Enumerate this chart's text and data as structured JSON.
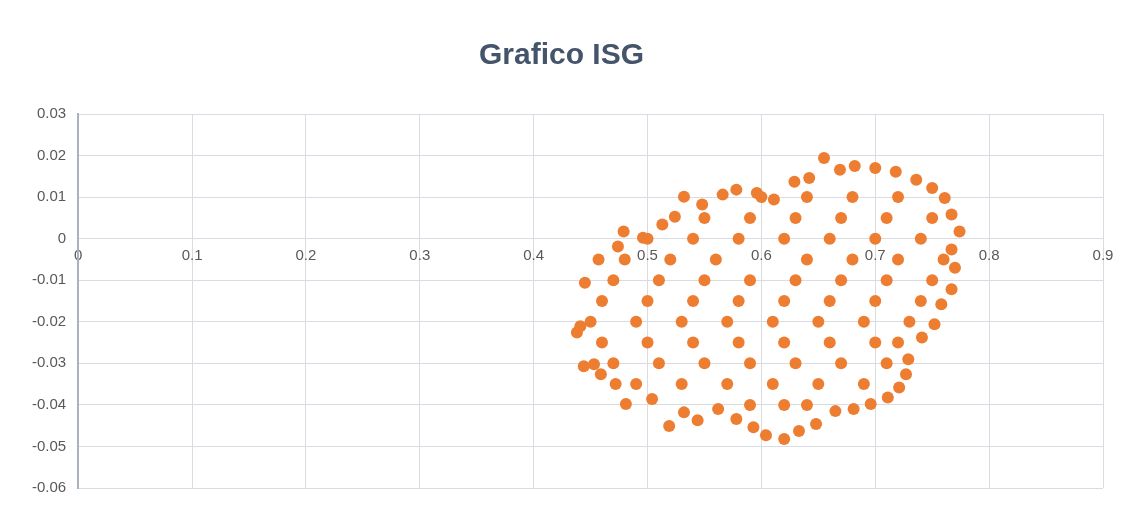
{
  "chart_data": {
    "type": "scatter",
    "title": "Grafico ISG",
    "xlim": [
      0,
      0.9
    ],
    "xticks": [
      0,
      0.1,
      0.2,
      0.3,
      0.4,
      0.5,
      0.6,
      0.7,
      0.8,
      0.9
    ],
    "ylim": [
      -0.06,
      0.03
    ],
    "yticks": [
      -0.06,
      -0.05,
      -0.04,
      -0.03,
      -0.02,
      -0.01,
      0,
      0.01,
      0.02,
      0.03
    ],
    "grid": true,
    "marker": "circle",
    "series": [
      {
        "color": "#ed7d31",
        "x": [
          0.438,
          0.441,
          0.444,
          0.453,
          0.445,
          0.457,
          0.474,
          0.479,
          0.496,
          0.513,
          0.524,
          0.532,
          0.548,
          0.566,
          0.578,
          0.596,
          0.611,
          0.629,
          0.642,
          0.655,
          0.669,
          0.682,
          0.7,
          0.718,
          0.736,
          0.75,
          0.761,
          0.767,
          0.774,
          0.767,
          0.77,
          0.767,
          0.758,
          0.752,
          0.741,
          0.729,
          0.727,
          0.721,
          0.711,
          0.696,
          0.681,
          0.665,
          0.648,
          0.633,
          0.62,
          0.604,
          0.593,
          0.578,
          0.562,
          0.544,
          0.532,
          0.519,
          0.504,
          0.481,
          0.472,
          0.459,
          0.6,
          0.64,
          0.68,
          0.72,
          0.55,
          0.59,
          0.63,
          0.67,
          0.71,
          0.75,
          0.5,
          0.54,
          0.58,
          0.62,
          0.66,
          0.7,
          0.74,
          0.48,
          0.52,
          0.56,
          0.64,
          0.68,
          0.72,
          0.76,
          0.47,
          0.51,
          0.55,
          0.59,
          0.63,
          0.67,
          0.71,
          0.75,
          0.46,
          0.5,
          0.54,
          0.58,
          0.62,
          0.66,
          0.7,
          0.74,
          0.45,
          0.49,
          0.53,
          0.57,
          0.61,
          0.65,
          0.69,
          0.73,
          0.46,
          0.5,
          0.54,
          0.58,
          0.62,
          0.66,
          0.7,
          0.72,
          0.47,
          0.51,
          0.55,
          0.59,
          0.63,
          0.67,
          0.71,
          0.49,
          0.53,
          0.57,
          0.61,
          0.65,
          0.69,
          0.59,
          0.62,
          0.64
        ],
        "values": [
          -0.0226,
          -0.0211,
          -0.0307,
          -0.0302,
          -0.0106,
          -0.005,
          -0.0019,
          0.0017,
          0.0002,
          0.0034,
          0.0053,
          0.0101,
          0.0082,
          0.0106,
          0.0118,
          0.011,
          0.0094,
          0.0137,
          0.0146,
          0.0194,
          0.0166,
          0.0175,
          0.017,
          0.0161,
          0.0142,
          0.0122,
          0.0098,
          0.0058,
          0.0017,
          -0.0026,
          -0.007,
          -0.0122,
          -0.0158,
          -0.0206,
          -0.0238,
          -0.029,
          -0.0326,
          -0.0358,
          -0.0382,
          -0.0398,
          -0.041,
          -0.0415,
          -0.0446,
          -0.0463,
          -0.0482,
          -0.0473,
          -0.0454,
          -0.0434,
          -0.041,
          -0.0437,
          -0.0418,
          -0.0451,
          -0.0386,
          -0.0398,
          -0.035,
          -0.0326,
          0.01,
          0.01,
          0.01,
          0.01,
          0.005,
          0.005,
          0.005,
          0.005,
          0.005,
          0.005,
          0,
          0,
          0,
          0,
          0,
          0,
          0,
          -0.005,
          -0.005,
          -0.005,
          -0.005,
          -0.005,
          -0.005,
          -0.005,
          -0.01,
          -0.01,
          -0.01,
          -0.01,
          -0.01,
          -0.01,
          -0.01,
          -0.01,
          -0.015,
          -0.015,
          -0.015,
          -0.015,
          -0.015,
          -0.015,
          -0.015,
          -0.015,
          -0.02,
          -0.02,
          -0.02,
          -0.02,
          -0.02,
          -0.02,
          -0.02,
          -0.02,
          -0.025,
          -0.025,
          -0.025,
          -0.025,
          -0.025,
          -0.025,
          -0.025,
          -0.025,
          -0.03,
          -0.03,
          -0.03,
          -0.03,
          -0.03,
          -0.03,
          -0.03,
          -0.035,
          -0.035,
          -0.035,
          -0.035,
          -0.035,
          -0.035,
          -0.04,
          -0.04,
          -0.04
        ]
      }
    ]
  }
}
